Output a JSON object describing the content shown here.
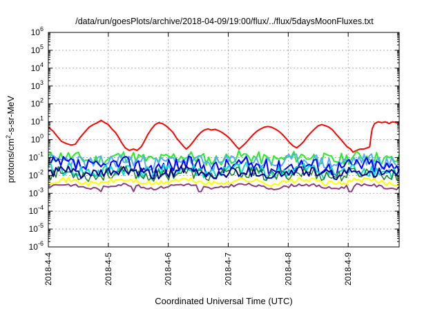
{
  "chart_data": {
    "type": "line",
    "title": "/data/run/goesPlots/archive/2018-04-09/19:00/flux/../flux/5daysMoonFluxes.txt",
    "xlabel": "Coordinated Universal Time (UTC)",
    "ylabel_parts": {
      "pre": "protons/cm",
      "sup": "2",
      "post": "-s-sr-MeV"
    },
    "yscale": "log",
    "ylim": [
      1e-06,
      1000000.0
    ],
    "xlim_days": [
      0,
      5.85
    ],
    "x_ticks": [
      "2018-4-4",
      "2018-4-5",
      "2018-4-6",
      "2018-4-7",
      "2018-4-8",
      "2018-4-9"
    ],
    "y_ticks": [
      {
        "base": "10",
        "exp": "-6"
      },
      {
        "base": "10",
        "exp": "-5"
      },
      {
        "base": "10",
        "exp": "-4"
      },
      {
        "base": "10",
        "exp": "-3"
      },
      {
        "base": "10",
        "exp": "-2"
      },
      {
        "base": "10",
        "exp": "-1"
      },
      {
        "base": "10",
        "exp": "0"
      },
      {
        "base": "10",
        "exp": "1"
      },
      {
        "base": "10",
        "exp": "2"
      },
      {
        "base": "10",
        "exp": "3"
      },
      {
        "base": "10",
        "exp": "4"
      },
      {
        "base": "10",
        "exp": "5"
      },
      {
        "base": "10",
        "exp": "6"
      }
    ],
    "grid": true,
    "series": [
      {
        "color": "#ff0000",
        "width": 2,
        "points": [
          [
            0.0,
            5
          ],
          [
            0.08,
            3
          ],
          [
            0.15,
            1.5
          ],
          [
            0.22,
            0.8
          ],
          [
            0.3,
            0.6
          ],
          [
            0.38,
            0.5
          ],
          [
            0.45,
            0.55
          ],
          [
            0.52,
            1.2
          ],
          [
            0.6,
            2.5
          ],
          [
            0.68,
            5
          ],
          [
            0.75,
            7
          ],
          [
            0.82,
            9
          ],
          [
            0.88,
            12
          ],
          [
            0.94,
            9
          ],
          [
            1.0,
            7
          ],
          [
            1.06,
            4
          ],
          [
            1.12,
            2.5
          ],
          [
            1.18,
            1.2
          ],
          [
            1.22,
            0.7
          ],
          [
            1.28,
            0.35
          ],
          [
            1.35,
            0.25
          ],
          [
            1.42,
            0.3
          ],
          [
            1.48,
            0.25
          ],
          [
            1.55,
            0.4
          ],
          [
            1.6,
            0.8
          ],
          [
            1.66,
            2
          ],
          [
            1.72,
            4
          ],
          [
            1.78,
            7
          ],
          [
            1.84,
            9
          ],
          [
            1.9,
            8
          ],
          [
            1.96,
            6
          ],
          [
            2.02,
            4
          ],
          [
            2.08,
            2.5
          ],
          [
            2.14,
            1.2
          ],
          [
            2.2,
            0.7
          ],
          [
            2.26,
            0.4
          ],
          [
            2.3,
            0.3
          ],
          [
            2.36,
            0.45
          ],
          [
            2.42,
            0.8
          ],
          [
            2.48,
            1.5
          ],
          [
            2.54,
            2.5
          ],
          [
            2.6,
            3.5
          ],
          [
            2.66,
            4
          ],
          [
            2.72,
            3.5
          ],
          [
            2.78,
            3.8
          ],
          [
            2.84,
            3.2
          ],
          [
            2.9,
            2.5
          ],
          [
            2.96,
            1.8
          ],
          [
            3.02,
            1.2
          ],
          [
            3.08,
            0.7
          ],
          [
            3.14,
            0.4
          ],
          [
            3.18,
            0.3
          ],
          [
            3.24,
            0.45
          ],
          [
            3.3,
            0.7
          ],
          [
            3.36,
            1.2
          ],
          [
            3.42,
            2
          ],
          [
            3.48,
            3
          ],
          [
            3.54,
            4
          ],
          [
            3.6,
            5
          ],
          [
            3.66,
            5.5
          ],
          [
            3.72,
            5
          ],
          [
            3.78,
            4
          ],
          [
            3.84,
            3
          ],
          [
            3.9,
            2
          ],
          [
            3.96,
            1.2
          ],
          [
            4.02,
            0.7
          ],
          [
            4.08,
            0.45
          ],
          [
            4.14,
            0.35
          ],
          [
            4.2,
            0.5
          ],
          [
            4.26,
            0.8
          ],
          [
            4.32,
            1.5
          ],
          [
            4.38,
            2.5
          ],
          [
            4.44,
            4
          ],
          [
            4.5,
            6
          ],
          [
            4.56,
            7
          ],
          [
            4.62,
            6
          ],
          [
            4.68,
            5
          ],
          [
            4.74,
            3.5
          ],
          [
            4.8,
            2
          ],
          [
            4.86,
            1.2
          ],
          [
            4.92,
            0.7
          ],
          [
            4.98,
            0.4
          ],
          [
            5.04,
            0.3
          ],
          [
            5.08,
            0.2
          ],
          [
            5.14,
            0.25
          ],
          [
            5.2,
            0.3
          ],
          [
            5.26,
            0.3
          ],
          [
            5.32,
            0.35
          ],
          [
            5.36,
            0.4
          ],
          [
            5.38,
            1.5
          ],
          [
            5.4,
            4
          ],
          [
            5.44,
            8
          ],
          [
            5.5,
            10
          ],
          [
            5.56,
            9
          ],
          [
            5.62,
            10
          ],
          [
            5.68,
            8
          ],
          [
            5.74,
            10
          ],
          [
            5.8,
            9
          ],
          [
            5.85,
            8
          ]
        ]
      },
      {
        "color": "#22ee22",
        "width": 2,
        "base": 0.095,
        "amp": 0.35,
        "seed": 11
      },
      {
        "color": "#55aaff",
        "width": 2,
        "base": 0.06,
        "amp": 0.4,
        "seed": 23
      },
      {
        "color": "#0000ff",
        "width": 2,
        "base": 0.035,
        "amp": 0.45,
        "seed": 37
      },
      {
        "color": "#00ddcc",
        "width": 2,
        "base": 0.018,
        "amp": 0.4,
        "seed": 41
      },
      {
        "color": "#1f7f1f",
        "width": 1.5,
        "base": 0.012,
        "amp": 0.35,
        "seed": 53
      },
      {
        "color": "#000099",
        "width": 2,
        "base": 0.014,
        "amp": 0.3,
        "seed": 61
      },
      {
        "color": "#ffff00",
        "width": 2,
        "base": 0.0045,
        "amp": 0.15,
        "seed": 71
      },
      {
        "color": "#8b3a7a",
        "width": 2,
        "base": 0.0025,
        "amp": 0.08,
        "seed": 83,
        "dips": [
          0.88,
          1.42,
          2.52,
          5.04
        ]
      }
    ]
  }
}
